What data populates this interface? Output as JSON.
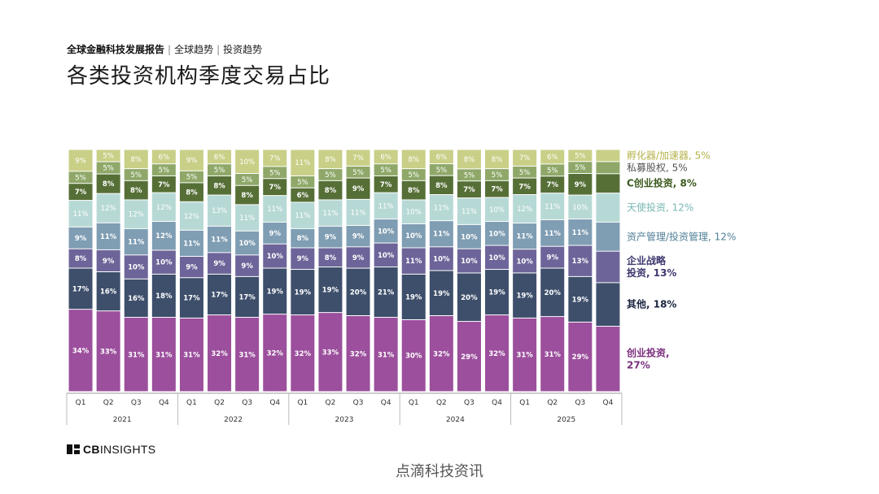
{
  "header": {
    "report": "全球金融科技发展报告",
    "section1": "全球趋势",
    "section2": "投资趋势",
    "title": "各类投资机构季度交易占比"
  },
  "brand": {
    "cb": "CB",
    "insights": "INSIGHTS"
  },
  "watermark": "点滴科技资讯",
  "colors": {
    "创业投资": "#9b4f9c",
    "其他": "#3e4f6b",
    "企业战略投资": "#6d6599",
    "资产管理/投资管理": "#7f9db3",
    "天使投资": "#b7d9d6",
    "C创业投资": "#566f36",
    "私募股权": "#8fa869",
    "孵化器/加速器": "#c9cf86"
  },
  "chart_data": {
    "type": "bar",
    "stacked": true,
    "normalized": true,
    "categories": [
      "Q1",
      "Q2",
      "Q3",
      "Q4",
      "Q1",
      "Q2",
      "Q3",
      "Q4",
      "Q1",
      "Q2",
      "Q3",
      "Q4",
      "Q1",
      "Q2",
      "Q3",
      "Q4",
      "Q1",
      "Q2",
      "Q3",
      "Q4"
    ],
    "years": [
      "2021",
      "2022",
      "2023",
      "2024",
      "2025"
    ],
    "series": [
      {
        "name": "创业投资",
        "values": [
          34,
          33,
          31,
          31,
          31,
          32,
          31,
          32,
          32,
          33,
          32,
          31,
          30,
          32,
          29,
          32,
          31,
          31,
          29,
          27
        ]
      },
      {
        "name": "其他",
        "values": [
          17,
          16,
          16,
          18,
          17,
          17,
          17,
          19,
          19,
          19,
          20,
          21,
          19,
          19,
          20,
          19,
          19,
          20,
          19,
          18
        ]
      },
      {
        "name": "企业战略投资",
        "values": [
          8,
          9,
          10,
          10,
          9,
          9,
          9,
          10,
          9,
          8,
          9,
          10,
          11,
          10,
          10,
          10,
          10,
          9,
          13,
          13
        ]
      },
      {
        "name": "资产管理/投资管理",
        "values": [
          9,
          11,
          11,
          12,
          11,
          11,
          10,
          9,
          8,
          9,
          9,
          10,
          10,
          11,
          10,
          10,
          11,
          11,
          11,
          12
        ]
      },
      {
        "name": "天使投资",
        "values": [
          11,
          12,
          12,
          12,
          12,
          13,
          11,
          11,
          11,
          11,
          11,
          11,
          10,
          11,
          11,
          10,
          12,
          11,
          10,
          12
        ]
      },
      {
        "name": "C创业投资",
        "values": [
          7,
          8,
          8,
          7,
          8,
          8,
          8,
          7,
          6,
          8,
          9,
          7,
          8,
          8,
          7,
          7,
          7,
          7,
          9,
          8
        ]
      },
      {
        "name": "私募股权",
        "values": [
          5,
          5,
          5,
          5,
          5,
          5,
          5,
          5,
          5,
          5,
          5,
          5,
          5,
          5,
          5,
          5,
          5,
          5,
          5,
          5
        ]
      },
      {
        "name": "孵化器/加速器",
        "values": [
          9,
          5,
          8,
          6,
          9,
          6,
          10,
          7,
          11,
          8,
          7,
          6,
          8,
          6,
          8,
          8,
          7,
          6,
          5,
          5
        ]
      }
    ],
    "show_labels_last_bar": false,
    "legend": [
      {
        "series": "孵化器/加速器",
        "text": "孵化器/加速器, 5%",
        "lines": [
          "孵化器/加速器, 5%"
        ],
        "color": "#b5b24a"
      },
      {
        "series": "私募股权",
        "text": "私募股权, 5%",
        "lines": [
          "私募股权, 5%"
        ],
        "color": "#555555"
      },
      {
        "series": "C创业投资",
        "text": "C创业投资, 8%",
        "lines": [
          "C创业投资, 8%"
        ],
        "color": "#3c5a1e",
        "bold": true
      },
      {
        "series": "天使投资",
        "text": "天使投资, 12%",
        "lines": [
          "天使投资, 12%"
        ],
        "color": "#79b7b4"
      },
      {
        "series": "资产管理/投资管理",
        "text": "资产管理/投资管理, 12%",
        "lines": [
          "资产管理/投资管理, 12%"
        ],
        "color": "#4f7e97"
      },
      {
        "series": "企业战略投资",
        "text": "企业战略投资, 13%",
        "lines": [
          "企业战略",
          "投资, 13%"
        ],
        "color": "#3d3870",
        "bold": true
      },
      {
        "series": "其他",
        "text": "其他, 18%",
        "lines": [
          "其他, 18%"
        ],
        "color": "#1b2540",
        "bold": true
      },
      {
        "series": "创业投资",
        "text": "创业投资, 27%",
        "lines": [
          "创业投资,",
          "27%"
        ],
        "color": "#7b2f7e",
        "bold": true
      }
    ]
  }
}
